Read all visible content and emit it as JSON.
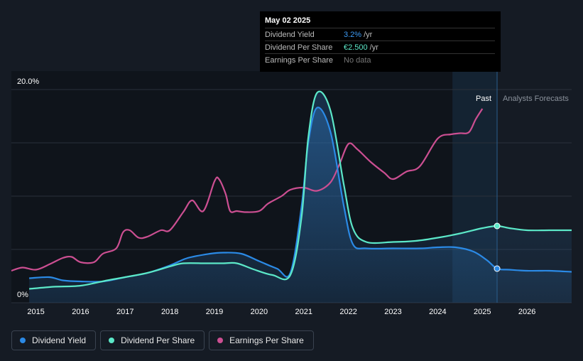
{
  "chart_data": {
    "type": "area",
    "ylim": [
      0,
      20
    ],
    "xlim": [
      2014.45,
      2027.0
    ],
    "y_tick_labels": [
      "20.0%",
      "0%"
    ],
    "x_ticks": [
      2015,
      2016,
      2017,
      2018,
      2019,
      2020,
      2021,
      2022,
      2023,
      2024,
      2025,
      2026
    ],
    "grid": true,
    "forecast_start": 2025.33,
    "past_shade_start": 2024.33,
    "past_label": "Past",
    "forecast_label": "Analysts Forecasts",
    "series": [
      {
        "name": "Dividend Yield",
        "color": "#2b8ae6",
        "x": [
          2014.85,
          2015.3,
          2015.6,
          2016.0,
          2016.5,
          2017.0,
          2017.5,
          2018.0,
          2018.4,
          2018.9,
          2019.2,
          2019.6,
          2020.0,
          2020.4,
          2020.7,
          2020.95,
          2021.1,
          2021.3,
          2021.6,
          2021.9,
          2022.1,
          2022.4,
          2023.0,
          2023.6,
          2024.0,
          2024.4,
          2024.8,
          2025.1,
          2025.33,
          2025.6,
          2026.0,
          2026.5,
          2027.0
        ],
        "y": [
          2.3,
          2.4,
          2.1,
          2.0,
          2.0,
          2.4,
          2.8,
          3.5,
          4.2,
          4.6,
          4.7,
          4.6,
          3.9,
          3.2,
          2.8,
          9.0,
          15.0,
          18.3,
          16.0,
          9.0,
          5.5,
          5.1,
          5.1,
          5.1,
          5.2,
          5.2,
          4.8,
          4.0,
          3.2,
          3.1,
          3.0,
          3.0,
          2.9
        ]
      },
      {
        "name": "Dividend Per Share",
        "color": "#5ce8c8",
        "x": [
          2014.85,
          2015.4,
          2016.0,
          2016.6,
          2017.0,
          2017.5,
          2018.0,
          2018.3,
          2018.8,
          2019.2,
          2019.5,
          2019.9,
          2020.3,
          2020.7,
          2020.95,
          2021.1,
          2021.3,
          2021.6,
          2021.9,
          2022.1,
          2022.4,
          2023.0,
          2023.5,
          2024.0,
          2024.5,
          2025.0,
          2025.33,
          2025.6,
          2026.0,
          2026.5,
          2027.0
        ],
        "y": [
          1.3,
          1.5,
          1.6,
          2.1,
          2.4,
          2.8,
          3.4,
          3.7,
          3.7,
          3.7,
          3.7,
          3.1,
          2.6,
          2.6,
          8.0,
          15.5,
          19.7,
          18.0,
          11.0,
          7.0,
          5.7,
          5.7,
          5.8,
          6.1,
          6.5,
          7.0,
          7.2,
          7.0,
          6.8,
          6.8,
          6.8
        ]
      },
      {
        "name": "Earnings Per Share",
        "color": "#cc4f92",
        "x": [
          2014.45,
          2014.7,
          2015.0,
          2015.3,
          2015.6,
          2015.8,
          2016.0,
          2016.3,
          2016.5,
          2016.8,
          2016.95,
          2017.1,
          2017.3,
          2017.5,
          2017.8,
          2018.0,
          2018.3,
          2018.5,
          2018.75,
          2019.0,
          2019.1,
          2019.25,
          2019.35,
          2019.5,
          2019.7,
          2020.0,
          2020.2,
          2020.5,
          2020.7,
          2021.0,
          2021.3,
          2021.6,
          2021.8,
          2022.0,
          2022.2,
          2022.5,
          2022.8,
          2023.0,
          2023.3,
          2023.6,
          2024.0,
          2024.3,
          2024.5,
          2024.7,
          2024.85,
          2025.0
        ],
        "y": [
          3.0,
          3.3,
          3.1,
          3.6,
          4.2,
          4.3,
          3.8,
          3.8,
          4.6,
          5.1,
          6.6,
          6.8,
          6.1,
          6.2,
          6.8,
          6.8,
          8.5,
          9.6,
          8.6,
          11.4,
          11.6,
          10.2,
          8.6,
          8.6,
          8.5,
          8.6,
          9.3,
          10.0,
          10.6,
          10.8,
          10.5,
          11.3,
          13.0,
          14.9,
          14.4,
          13.2,
          12.2,
          11.6,
          12.3,
          12.8,
          15.4,
          15.8,
          15.9,
          16.0,
          17.2,
          18.2
        ]
      }
    ]
  },
  "tooltip": {
    "date": "May 02 2025",
    "rows": [
      {
        "label": "Dividend Yield",
        "value": "3.2%",
        "unit": "/yr",
        "color": "#2b8ae6"
      },
      {
        "label": "Dividend Per Share",
        "value": "€2.500",
        "unit": "/yr",
        "color": "#5ce8c8"
      },
      {
        "label": "Earnings Per Share",
        "value": "No data",
        "unit": "",
        "color": "#777"
      }
    ]
  },
  "legend": [
    {
      "label": "Dividend Yield",
      "color": "#2b8ae6"
    },
    {
      "label": "Dividend Per Share",
      "color": "#5ce8c8"
    },
    {
      "label": "Earnings Per Share",
      "color": "#cc4f92"
    }
  ]
}
